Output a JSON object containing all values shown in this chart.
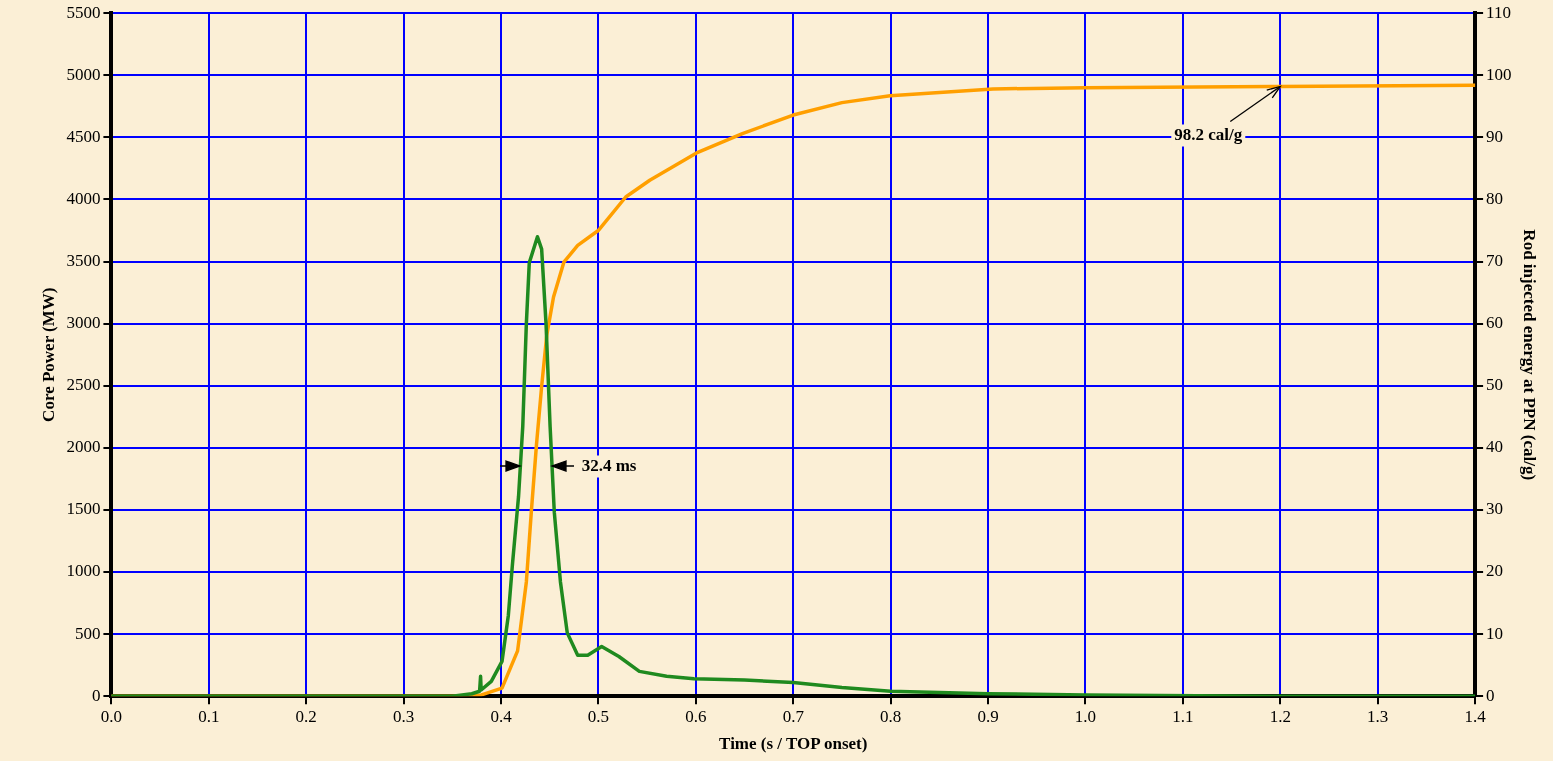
{
  "chart_data": {
    "type": "line",
    "xlabel": "Time (s / TOP onset)",
    "ylabel": "Core Power (MW)",
    "y2label": "Rod injected energy at PPN (cal/g)",
    "xlim": [
      0,
      1.4
    ],
    "xticks": [
      {
        "value": 0,
        "label": "0.0"
      },
      {
        "value": 0.1,
        "label": "0.1"
      },
      {
        "value": 0.2,
        "label": "0.2"
      },
      {
        "value": 0.3,
        "label": "0.3"
      },
      {
        "value": 0.4,
        "label": "0.4"
      },
      {
        "value": 0.5,
        "label": "0.5"
      },
      {
        "value": 0.6,
        "label": "0.6"
      },
      {
        "value": 0.7,
        "label": "0.7"
      },
      {
        "value": 0.8,
        "label": "0.8"
      },
      {
        "value": 0.9,
        "label": "0.9"
      },
      {
        "value": 1,
        "label": "1.0"
      },
      {
        "value": 1.1,
        "label": "1.1"
      },
      {
        "value": 1.2,
        "label": "1.2"
      },
      {
        "value": 1.3,
        "label": "1.3"
      },
      {
        "value": 1.4,
        "label": "1.4"
      }
    ],
    "ylim": [
      0,
      5500
    ],
    "yticks": [
      0,
      500,
      1000,
      1500,
      2000,
      2500,
      3000,
      3500,
      4000,
      4500,
      5000,
      5500
    ],
    "y2lim": [
      0,
      110
    ],
    "y2ticks": [
      0,
      10,
      20,
      30,
      40,
      50,
      60,
      70,
      80,
      90,
      100,
      110
    ],
    "grid": true,
    "legend": false,
    "marker": "none",
    "line_style": "solid",
    "series": [
      {
        "color": "#1f8a1f",
        "x": [
          0,
          0.3,
          0.35,
          0.37,
          0.378,
          0.379,
          0.3796,
          0.39,
          0.401,
          0.4075,
          0.4117,
          0.418,
          0.4223,
          0.426,
          0.429,
          0.4374,
          0.4417,
          0.4462,
          0.4504,
          0.4547,
          0.461,
          0.468,
          0.4787,
          0.489,
          0.5033,
          0.521,
          0.542,
          0.57,
          0.598,
          0.65,
          0.7,
          0.75,
          0.8,
          0.9,
          1,
          1.2,
          1.4
        ],
        "values": [
          0,
          0,
          0,
          20,
          40,
          160,
          50,
          120,
          280,
          650,
          1060,
          1610,
          2170,
          3000,
          3490,
          3700,
          3600,
          3000,
          2170,
          1480,
          920,
          510,
          330,
          330,
          400,
          320,
          200,
          160,
          140,
          130,
          110,
          70,
          40,
          20,
          10,
          0,
          0
        ]
      },
      {
        "color": "#ff9f00",
        "axis": "y2",
        "x": [
          0,
          0.35,
          0.37,
          0.38,
          0.401,
          0.417,
          0.426,
          0.431,
          0.4364,
          0.4417,
          0.447,
          0.4539,
          0.4645,
          0.4787,
          0.4998,
          0.528,
          0.5527,
          0.602,
          0.6478,
          0.7,
          0.75,
          0.7994,
          0.905,
          1,
          1.2,
          1.4
        ],
        "values": [
          0,
          0,
          0.1,
          0.2,
          1.3,
          7.3,
          18.4,
          29.5,
          40.5,
          49.9,
          58.2,
          64.3,
          69.9,
          72.6,
          75,
          80.4,
          83.1,
          87.6,
          90.6,
          93.6,
          95.6,
          96.7,
          97.8,
          98,
          98.2,
          98.4
        ]
      }
    ],
    "annotations": [
      {
        "text": "98.2 cal/g",
        "x": 1.2,
        "y": 4910
      },
      {
        "text": "32.4 ms",
        "x": 0.452,
        "y": 1850
      }
    ]
  }
}
